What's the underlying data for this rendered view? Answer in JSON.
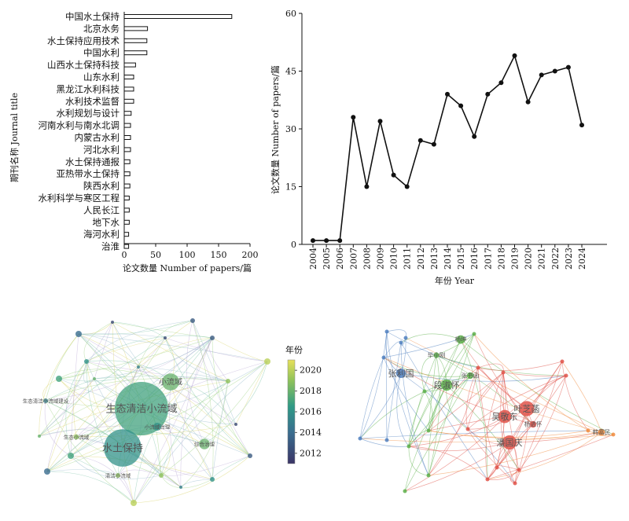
{
  "chart_data": [
    {
      "type": "bar",
      "orientation": "horizontal",
      "categories": [
        "中国水土保持",
        "北京水务",
        "水土保持应用技术",
        "中国水利",
        "山西水土保持科技",
        "山东水利",
        "黑龙江水利科技",
        "水利技术监督",
        "水利规划与设计",
        "河南水利与南水北调",
        "内蒙古水利",
        "河北水利",
        "水土保持通报",
        "亚热带水土保持",
        "陕西水利",
        "水利科学与寒区工程",
        "人民长江",
        "地下水",
        "海河水利",
        "治淮"
      ],
      "values": [
        171,
        37,
        36,
        36,
        18,
        15,
        15,
        15,
        11,
        10,
        10,
        10,
        9,
        9,
        9,
        8,
        8,
        8,
        7,
        7
      ],
      "xlabel": "论文数量 Number of papers/篇",
      "ylabel": "期刊名称 Journal title",
      "xlim": [
        0,
        200
      ],
      "xticks": [
        "0",
        "50",
        "100",
        "150",
        "200"
      ]
    },
    {
      "type": "line",
      "x": [
        "2004",
        "2005",
        "2006",
        "2007",
        "2008",
        "2009",
        "2010",
        "2011",
        "2012",
        "2013",
        "2014",
        "2015",
        "2016",
        "2017",
        "2018",
        "2019",
        "2020",
        "2021",
        "2022",
        "2023",
        "2024"
      ],
      "values": [
        1,
        1,
        1,
        33,
        15,
        32,
        18,
        15,
        27,
        26,
        39,
        36,
        28,
        39,
        42,
        49,
        37,
        44,
        45,
        46,
        31
      ],
      "xlabel": "年份 Year",
      "ylabel": "论文数量 Number of papers/篇",
      "ylim": [
        0,
        60
      ],
      "yticks": [
        "0",
        "15",
        "30",
        "45",
        "60"
      ]
    },
    {
      "type": "network",
      "colorbar": {
        "title": "年份",
        "ticks": [
          "2012",
          "2014",
          "2016",
          "2018",
          "2020"
        ]
      },
      "nodes": [
        {
          "label": "生态清洁小流域",
          "year": 2017,
          "size": 1.0
        },
        {
          "label": "水土保持",
          "year": 2016,
          "size": 0.7
        },
        {
          "label": "小流域",
          "year": 2018,
          "size": 0.32
        },
        {
          "label": "综合治理",
          "year": 2018,
          "size": 0.2
        },
        {
          "label": "小流域治理",
          "year": 2016,
          "size": 0.15
        },
        {
          "label": "生态清洁小流域建设",
          "year": 2015,
          "size": 0.08
        },
        {
          "label": "生态小流域",
          "year": 2019,
          "size": 0.1
        },
        {
          "label": "清洁小流域",
          "year": 2019,
          "size": 0.08
        }
      ]
    },
    {
      "type": "network",
      "nodes": [
        {
          "label": "叶芝菡",
          "cluster": "red",
          "size": 0.8
        },
        {
          "label": "吴敬东",
          "cluster": "red",
          "size": 0.7
        },
        {
          "label": "潘国庆",
          "cluster": "red",
          "size": 0.75
        },
        {
          "label": "段淑怀",
          "cluster": "green",
          "size": 0.6
        },
        {
          "label": "杨坤",
          "cluster": "green",
          "size": 0.45
        },
        {
          "label": "张书函",
          "cluster": "green",
          "size": 0.35
        },
        {
          "label": "毕小刚",
          "cluster": "green",
          "size": 0.3
        },
        {
          "label": "张利国",
          "cluster": "blue",
          "size": 0.5
        },
        {
          "label": "杨进怀",
          "cluster": "red",
          "size": 0.35
        },
        {
          "label": "韩富民",
          "cluster": "orange",
          "size": 0.35
        }
      ]
    }
  ]
}
